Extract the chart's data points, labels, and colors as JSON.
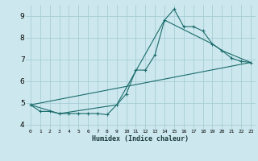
{
  "xlabel": "Humidex (Indice chaleur)",
  "xlim": [
    -0.5,
    23.5
  ],
  "ylim": [
    3.8,
    9.5
  ],
  "yticks": [
    4,
    5,
    6,
    7,
    8,
    9
  ],
  "xticks": [
    0,
    1,
    2,
    3,
    4,
    5,
    6,
    7,
    8,
    9,
    10,
    11,
    12,
    13,
    14,
    15,
    16,
    17,
    18,
    19,
    20,
    21,
    22,
    23
  ],
  "xtick_labels": [
    "0",
    "1",
    "2",
    "3",
    "4",
    "5",
    "6",
    "7",
    "8",
    "9",
    "10",
    "11",
    "12",
    "13",
    "14",
    "15",
    "16",
    "17",
    "18",
    "19",
    "20",
    "21",
    "22",
    "23"
  ],
  "bg_color": "#cce8ee",
  "grid_color": "#a8cdd5",
  "line_color": "#1a6b6b",
  "line1_x": [
    0,
    1,
    2,
    3,
    4,
    5,
    6,
    7,
    8,
    9,
    10,
    11,
    12,
    13,
    14,
    15,
    16,
    17,
    18,
    19,
    20,
    21,
    22,
    23
  ],
  "line1_y": [
    4.9,
    4.6,
    4.6,
    4.5,
    4.5,
    4.5,
    4.5,
    4.5,
    4.45,
    4.9,
    5.4,
    6.5,
    6.5,
    7.2,
    8.8,
    9.3,
    8.5,
    8.5,
    8.3,
    7.7,
    7.4,
    7.05,
    6.9,
    6.85
  ],
  "line2_x": [
    0,
    3,
    9,
    14,
    19,
    20,
    23
  ],
  "line2_y": [
    4.9,
    4.5,
    4.9,
    8.8,
    7.7,
    7.4,
    6.85
  ],
  "line3_x": [
    0,
    23
  ],
  "line3_y": [
    4.9,
    6.85
  ]
}
